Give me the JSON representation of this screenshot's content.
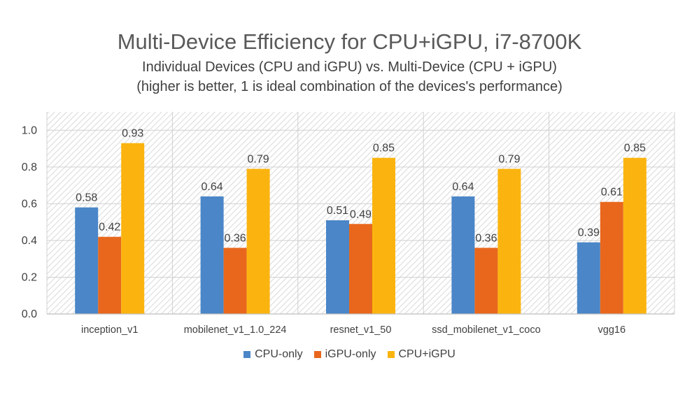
{
  "chart_data": {
    "type": "bar",
    "title": "Multi-Device Efficiency for CPU+iGPU, i7-8700K",
    "subtitle_line1": "Individual Devices (CPU and iGPU) vs. Multi-Device (CPU + iGPU)",
    "subtitle_line2": "(higher is better, 1 is ideal combination of the devices's performance)",
    "categories": [
      "inception_v1",
      "mobilenet_v1_1.0_224",
      "resnet_v1_50",
      "ssd_mobilenet_v1_coco",
      "vgg16"
    ],
    "series": [
      {
        "name": "CPU-only",
        "color": "#4a86c8",
        "values": [
          0.58,
          0.64,
          0.51,
          0.64,
          0.39
        ],
        "labels": [
          "0.58",
          "0.64",
          "0.51",
          "0.64",
          "0.39"
        ]
      },
      {
        "name": "iGPU-only",
        "color": "#e8671c",
        "values": [
          0.42,
          0.36,
          0.49,
          0.36,
          0.61
        ],
        "labels": [
          "0.42",
          "0.36",
          "0.49",
          "0.36",
          "0.61"
        ]
      },
      {
        "name": "CPU+iGPU",
        "color": "#fbb40f",
        "values": [
          0.93,
          0.79,
          0.85,
          0.79,
          0.85
        ],
        "labels": [
          "0.93",
          "0.79",
          "0.85",
          "0.79",
          "0.85"
        ]
      }
    ],
    "yticks": [
      "0.0",
      "0.2",
      "0.4",
      "0.6",
      "0.8",
      "1.0"
    ],
    "ylim": [
      0,
      1.1
    ],
    "grid": true,
    "legend_position": "bottom"
  }
}
